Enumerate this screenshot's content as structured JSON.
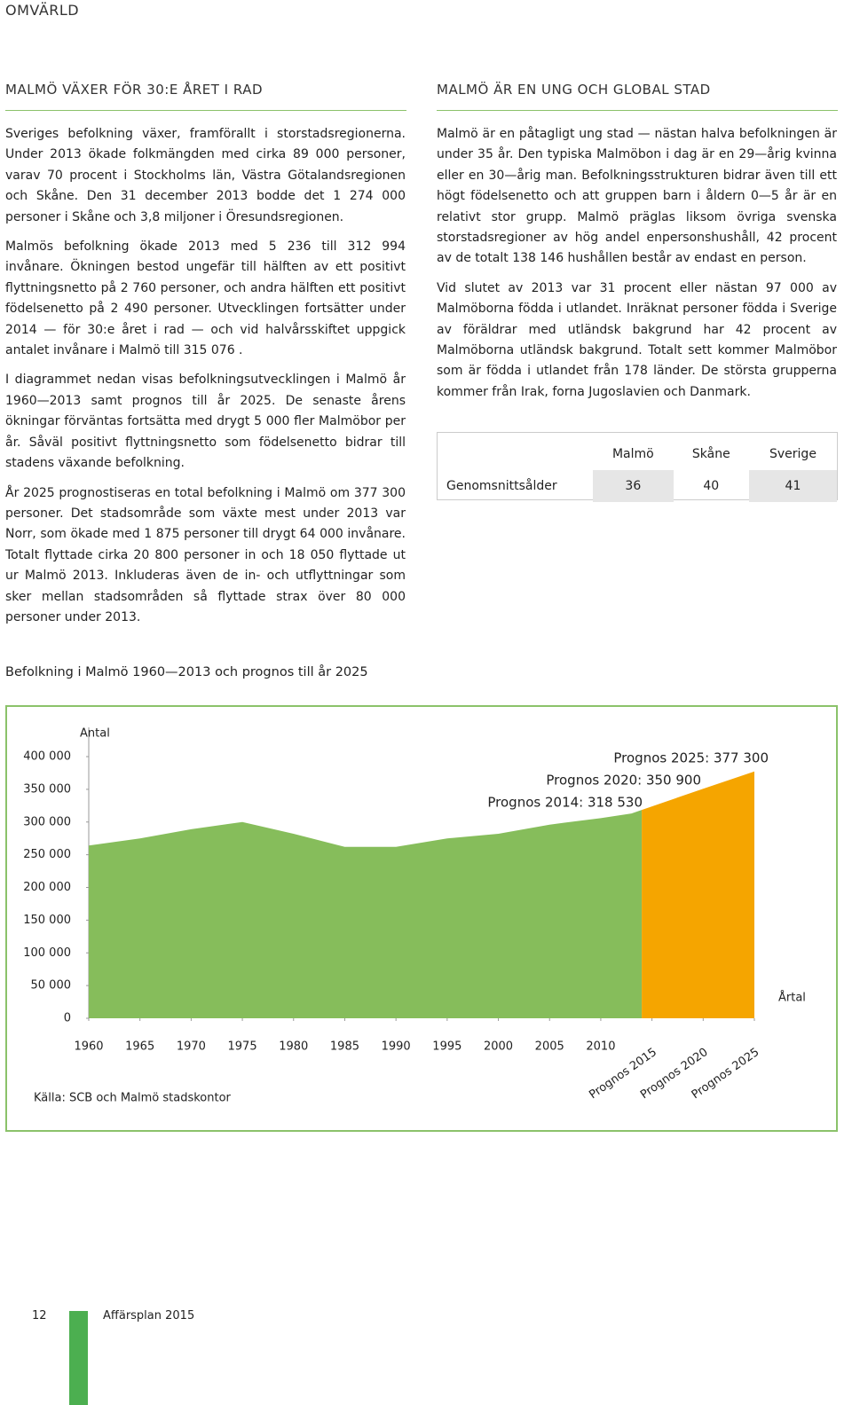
{
  "header": {
    "section": "OMVÄRLD"
  },
  "left": {
    "heading": "MALMÖ VÄXER FÖR 30:E ÅRET I RAD",
    "paragraphs": [
      "Sveriges befolkning växer, framförallt i storstadsregionerna. Under 2013 ökade folkmängden med cirka 89 000 personer, varav 70 procent i Stockholms län, Västra Götalandsregionen och Skåne. Den 31 december 2013 bodde det 1 274 000 personer i Skåne och 3,8 miljoner i Öresundsregionen.",
      "Malmös befolkning ökade 2013 med 5 236 till 312 994 invånare. Ökningen bestod ungefär till hälften av ett positivt flyttningsnetto på 2 760 personer, och andra hälften ett positivt födelsenetto på 2 490 personer. Utvecklingen fortsätter under 2014 — för 30:e året i rad — och vid halvårsskiftet uppgick antalet invånare i Malmö till 315 076 .",
      "I diagrammet nedan visas befolkningsutvecklingen i Malmö år 1960—2013 samt prognos till år 2025. De senaste årens ökningar förväntas fortsätta med drygt 5 000 fler Malmöbor per år. Såväl positivt flyttningsnetto som födelsenetto bidrar till stadens växande befolkning.",
      "År 2025 prognostiseras en total befolkning i Malmö om 377 300 personer. Det stadsområde som växte mest under 2013 var Norr, som ökade med 1 875 personer till drygt 64 000 invånare. Totalt flyttade cirka 20 800 personer in och 18 050 flyttade ut ur Malmö 2013. Inkluderas även de in- och utflyttningar som sker mellan stadsområden så flyttade strax över 80 000 personer under 2013."
    ]
  },
  "right": {
    "heading": "MALMÖ ÄR EN UNG OCH GLOBAL STAD",
    "paragraphs": [
      "Malmö är en påtagligt ung stad — nästan halva befolkningen är under 35 år. Den typiska Malmöbon i dag är en 29—årig kvinna eller en 30—årig man. Befolkningsstrukturen bidrar även till ett högt födelsenetto och att gruppen barn i åldern 0—5 år är en relativt stor grupp. Malmö präglas liksom övriga svenska storstadsregioner av hög andel enpersonshushåll, 42 procent av de totalt 138 146 hushållen består av endast en person.",
      "Vid slutet av 2013 var 31 procent eller nästan 97 000 av Malmöborna födda i utlandet. Inräknat personer födda i Sverige av föräldrar med utländsk bakgrund har 42 procent av Malmöborna utländsk bakgrund. Totalt sett kommer Malmöbor som är födda i utlandet från 178 länder. De största grupperna kommer från Irak, forna Jugoslavien och Danmark."
    ]
  },
  "table": {
    "columns": [
      "Malmö",
      "Skåne",
      "Sverige"
    ],
    "rows": [
      [
        "Genomsnittsålder",
        36,
        40,
        41
      ]
    ]
  },
  "chart_data": {
    "type": "area",
    "title": "Befolkning i Malmö 1960—2013 och prognos till år 2025",
    "y_label": "Antal",
    "x_label": "Årtal",
    "source": "Källa: SCB och Malmö stadskontor",
    "annotations": [
      "Prognos 2025: 377 300",
      "Prognos 2020: 350 900",
      "Prognos 2014: 318 530"
    ],
    "series": [
      {
        "color": "#86bd5b",
        "x": [
          1960,
          1965,
          1970,
          1975,
          1980,
          1985,
          1990,
          1995,
          2000,
          2005,
          2010,
          2013,
          2014
        ],
        "values": [
          264000,
          275000,
          289000,
          300000,
          282000,
          262000,
          262000,
          275000,
          282000,
          296000,
          306000,
          312994,
          318530
        ]
      },
      {
        "color": "#f5a500",
        "x": [
          2014,
          2020,
          2025
        ],
        "values": [
          318530,
          350900,
          377300
        ]
      }
    ],
    "xlim": [
      1960,
      2025
    ],
    "xticks": [
      1960,
      1965,
      1970,
      1975,
      1980,
      1985,
      1990,
      1995,
      2000,
      2005,
      2010,
      {
        "value": 2015,
        "label": "Prognos 2015"
      },
      {
        "value": 2020,
        "label": "Prognos 2020"
      },
      {
        "value": 2025,
        "label": "Prognos 2025"
      }
    ],
    "ylim": [
      0,
      400000
    ],
    "yticks": [
      0,
      {
        "value": 50000,
        "label": "50 000"
      },
      {
        "value": 100000,
        "label": "100 000"
      },
      {
        "value": 150000,
        "label": "150 000"
      },
      {
        "value": 200000,
        "label": "200 000"
      },
      {
        "value": 250000,
        "label": "250 000"
      },
      {
        "value": 300000,
        "label": "300 000"
      },
      {
        "value": 350000,
        "label": "350 000"
      },
      {
        "value": 400000,
        "label": "400 000"
      }
    ]
  },
  "footer": {
    "page": "12",
    "title": "Affärsplan 2015"
  }
}
